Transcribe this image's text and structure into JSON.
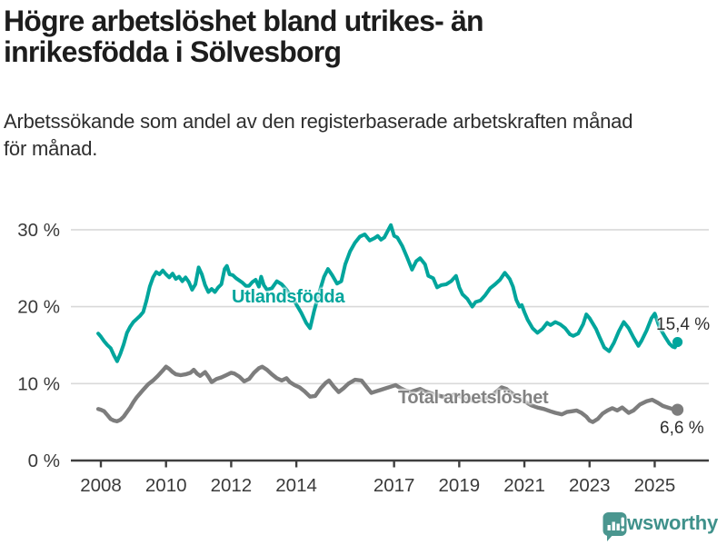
{
  "header": {
    "title_line1": "Högre arbetslöshet bland utrikes- än",
    "title_line2": "inrikesfödda i Sölvesborg",
    "subtitle_line1": "Arbetssökande som andel av den registerbaserade arbetskraften månad",
    "subtitle_line2": "för månad."
  },
  "colors": {
    "teal": "#00a59c",
    "gray": "#7d7d7d",
    "gray_label": "#828282",
    "grid": "#d9d9d9",
    "axis": "#3f3f3f",
    "tick_text": "#3a3a3a",
    "logo_teal": "#46948e"
  },
  "logo": {
    "text": "Newsworthy"
  },
  "chart_data": {
    "type": "line",
    "title": "Högre arbetslöshet bland utrikes- än inrikesfödda i Sölvesborg",
    "subtitle": "Arbetssökande som andel av den registerbaserade arbetskraften månad för månad.",
    "xlabel": "",
    "ylabel": "",
    "x_range_years": [
      2007.9,
      2026.2
    ],
    "ylim": [
      0,
      32
    ],
    "grid": "horizontal",
    "y_axis": {
      "ticks": [
        {
          "value": 0,
          "label": "0 %"
        },
        {
          "value": 10,
          "label": "10 %"
        },
        {
          "value": 20,
          "label": "20 %"
        },
        {
          "value": 30,
          "label": "30 %"
        }
      ]
    },
    "x_axis": {
      "ticks": [
        {
          "value": 2008,
          "label": "2008"
        },
        {
          "value": 2010,
          "label": "2010"
        },
        {
          "value": 2012,
          "label": "2012"
        },
        {
          "value": 2014,
          "label": "2014"
        },
        {
          "value": 2017,
          "label": "2017"
        },
        {
          "value": 2019,
          "label": "2019"
        },
        {
          "value": 2021,
          "label": "2021"
        },
        {
          "value": 2023,
          "label": "2023"
        },
        {
          "value": 2025,
          "label": "2025"
        }
      ]
    },
    "series": [
      {
        "name": "Utlandsfödda",
        "color": "#00a59c",
        "end_label": "15,4 %",
        "end_value": 15.4,
        "points": [
          [
            2007.92,
            16.5
          ],
          [
            2008.0,
            16.1
          ],
          [
            2008.1,
            15.5
          ],
          [
            2008.2,
            15.0
          ],
          [
            2008.3,
            14.6
          ],
          [
            2008.4,
            13.7
          ],
          [
            2008.5,
            12.9
          ],
          [
            2008.6,
            13.9
          ],
          [
            2008.7,
            15.1
          ],
          [
            2008.8,
            16.6
          ],
          [
            2008.9,
            17.4
          ],
          [
            2009.0,
            18.0
          ],
          [
            2009.1,
            18.4
          ],
          [
            2009.2,
            18.8
          ],
          [
            2009.3,
            19.3
          ],
          [
            2009.4,
            20.8
          ],
          [
            2009.5,
            22.6
          ],
          [
            2009.6,
            23.8
          ],
          [
            2009.7,
            24.5
          ],
          [
            2009.8,
            24.2
          ],
          [
            2009.9,
            24.7
          ],
          [
            2010.0,
            24.2
          ],
          [
            2010.1,
            23.8
          ],
          [
            2010.2,
            24.3
          ],
          [
            2010.3,
            23.6
          ],
          [
            2010.4,
            23.9
          ],
          [
            2010.5,
            23.3
          ],
          [
            2010.6,
            23.8
          ],
          [
            2010.7,
            23.2
          ],
          [
            2010.8,
            22.2
          ],
          [
            2010.9,
            22.9
          ],
          [
            2011.0,
            25.1
          ],
          [
            2011.1,
            24.2
          ],
          [
            2011.2,
            22.8
          ],
          [
            2011.3,
            21.9
          ],
          [
            2011.4,
            22.3
          ],
          [
            2011.5,
            21.9
          ],
          [
            2011.6,
            22.5
          ],
          [
            2011.7,
            22.9
          ],
          [
            2011.8,
            24.9
          ],
          [
            2011.87,
            25.3
          ],
          [
            2011.95,
            24.2
          ],
          [
            2012.05,
            24.1
          ],
          [
            2012.15,
            23.7
          ],
          [
            2012.25,
            23.4
          ],
          [
            2012.35,
            23.1
          ],
          [
            2012.45,
            22.7
          ],
          [
            2012.55,
            22.7
          ],
          [
            2012.65,
            23.2
          ],
          [
            2012.75,
            23.5
          ],
          [
            2012.85,
            22.6
          ],
          [
            2012.92,
            23.9
          ],
          [
            2013.0,
            22.8
          ],
          [
            2013.1,
            22.2
          ],
          [
            2013.25,
            22.4
          ],
          [
            2013.4,
            23.3
          ],
          [
            2013.55,
            22.9
          ],
          [
            2013.7,
            22.2
          ],
          [
            2013.85,
            21.3
          ],
          [
            2014.0,
            20.3
          ],
          [
            2014.15,
            19.2
          ],
          [
            2014.3,
            17.9
          ],
          [
            2014.42,
            17.2
          ],
          [
            2014.55,
            19.5
          ],
          [
            2014.7,
            21.8
          ],
          [
            2014.85,
            23.9
          ],
          [
            2014.97,
            24.9
          ],
          [
            2015.1,
            24.1
          ],
          [
            2015.25,
            23.0
          ],
          [
            2015.38,
            23.3
          ],
          [
            2015.5,
            25.5
          ],
          [
            2015.65,
            27.2
          ],
          [
            2015.8,
            28.3
          ],
          [
            2015.95,
            29.1
          ],
          [
            2016.1,
            29.4
          ],
          [
            2016.25,
            28.6
          ],
          [
            2016.4,
            28.9
          ],
          [
            2016.5,
            29.2
          ],
          [
            2016.6,
            28.7
          ],
          [
            2016.7,
            29.0
          ],
          [
            2016.8,
            29.8
          ],
          [
            2016.9,
            30.6
          ],
          [
            2017.0,
            29.2
          ],
          [
            2017.1,
            29.0
          ],
          [
            2017.25,
            27.9
          ],
          [
            2017.4,
            26.4
          ],
          [
            2017.55,
            24.8
          ],
          [
            2017.68,
            25.9
          ],
          [
            2017.8,
            26.3
          ],
          [
            2017.95,
            25.5
          ],
          [
            2018.05,
            24.0
          ],
          [
            2018.2,
            23.7
          ],
          [
            2018.32,
            22.5
          ],
          [
            2018.45,
            22.8
          ],
          [
            2018.6,
            22.9
          ],
          [
            2018.75,
            23.3
          ],
          [
            2018.9,
            24.0
          ],
          [
            2019.0,
            22.5
          ],
          [
            2019.1,
            21.6
          ],
          [
            2019.25,
            21.0
          ],
          [
            2019.4,
            20.0
          ],
          [
            2019.5,
            20.6
          ],
          [
            2019.65,
            20.8
          ],
          [
            2019.8,
            21.5
          ],
          [
            2019.95,
            22.4
          ],
          [
            2020.1,
            22.9
          ],
          [
            2020.25,
            23.5
          ],
          [
            2020.4,
            24.4
          ],
          [
            2020.55,
            23.6
          ],
          [
            2020.65,
            22.6
          ],
          [
            2020.75,
            20.9
          ],
          [
            2020.85,
            20.0
          ],
          [
            2020.92,
            20.2
          ],
          [
            2021.0,
            19.3
          ],
          [
            2021.1,
            18.3
          ],
          [
            2021.25,
            17.2
          ],
          [
            2021.4,
            16.6
          ],
          [
            2021.55,
            17.1
          ],
          [
            2021.7,
            17.9
          ],
          [
            2021.8,
            17.6
          ],
          [
            2021.95,
            18.0
          ],
          [
            2022.1,
            17.7
          ],
          [
            2022.25,
            17.2
          ],
          [
            2022.4,
            16.4
          ],
          [
            2022.5,
            16.2
          ],
          [
            2022.65,
            16.5
          ],
          [
            2022.8,
            17.7
          ],
          [
            2022.9,
            19.0
          ],
          [
            2023.0,
            18.5
          ],
          [
            2023.1,
            17.8
          ],
          [
            2023.2,
            17.1
          ],
          [
            2023.3,
            16.1
          ],
          [
            2023.45,
            14.7
          ],
          [
            2023.6,
            14.2
          ],
          [
            2023.75,
            15.3
          ],
          [
            2023.9,
            16.8
          ],
          [
            2024.05,
            18.0
          ],
          [
            2024.2,
            17.2
          ],
          [
            2024.35,
            16.0
          ],
          [
            2024.5,
            14.9
          ],
          [
            2024.6,
            15.6
          ],
          [
            2024.75,
            16.9
          ],
          [
            2024.9,
            18.5
          ],
          [
            2025.0,
            19.1
          ],
          [
            2025.15,
            17.3
          ],
          [
            2025.3,
            16.2
          ],
          [
            2025.45,
            15.2
          ],
          [
            2025.55,
            14.8
          ],
          [
            2025.62,
            14.7
          ],
          [
            2025.7,
            15.4
          ]
        ]
      },
      {
        "name": "Total arbetslöshet",
        "color": "#7d7d7d",
        "end_label": "6,6 %",
        "end_value": 6.6,
        "points": [
          [
            2007.92,
            6.7
          ],
          [
            2008.0,
            6.6
          ],
          [
            2008.1,
            6.4
          ],
          [
            2008.2,
            5.9
          ],
          [
            2008.3,
            5.4
          ],
          [
            2008.4,
            5.2
          ],
          [
            2008.5,
            5.1
          ],
          [
            2008.6,
            5.3
          ],
          [
            2008.7,
            5.7
          ],
          [
            2008.8,
            6.3
          ],
          [
            2008.9,
            6.9
          ],
          [
            2009.0,
            7.6
          ],
          [
            2009.1,
            8.2
          ],
          [
            2009.2,
            8.7
          ],
          [
            2009.3,
            9.2
          ],
          [
            2009.45,
            9.9
          ],
          [
            2009.6,
            10.4
          ],
          [
            2009.75,
            11.0
          ],
          [
            2009.9,
            11.7
          ],
          [
            2010.0,
            12.2
          ],
          [
            2010.1,
            11.9
          ],
          [
            2010.2,
            11.5
          ],
          [
            2010.3,
            11.2
          ],
          [
            2010.45,
            11.1
          ],
          [
            2010.6,
            11.2
          ],
          [
            2010.75,
            11.4
          ],
          [
            2010.85,
            11.8
          ],
          [
            2010.95,
            11.3
          ],
          [
            2011.05,
            11.0
          ],
          [
            2011.2,
            11.5
          ],
          [
            2011.3,
            10.9
          ],
          [
            2011.4,
            10.2
          ],
          [
            2011.55,
            10.6
          ],
          [
            2011.7,
            10.8
          ],
          [
            2011.85,
            11.1
          ],
          [
            2012.0,
            11.4
          ],
          [
            2012.1,
            11.3
          ],
          [
            2012.25,
            10.9
          ],
          [
            2012.4,
            10.3
          ],
          [
            2012.55,
            10.6
          ],
          [
            2012.7,
            11.4
          ],
          [
            2012.85,
            12.0
          ],
          [
            2012.95,
            12.2
          ],
          [
            2013.1,
            11.8
          ],
          [
            2013.25,
            11.2
          ],
          [
            2013.4,
            10.7
          ],
          [
            2013.55,
            10.4
          ],
          [
            2013.7,
            10.7
          ],
          [
            2013.8,
            10.2
          ],
          [
            2013.95,
            9.8
          ],
          [
            2014.1,
            9.5
          ],
          [
            2014.25,
            9.0
          ],
          [
            2014.42,
            8.3
          ],
          [
            2014.58,
            8.4
          ],
          [
            2014.75,
            9.4
          ],
          [
            2014.9,
            10.1
          ],
          [
            2015.0,
            10.4
          ],
          [
            2015.15,
            9.6
          ],
          [
            2015.3,
            8.9
          ],
          [
            2015.45,
            9.4
          ],
          [
            2015.6,
            10.0
          ],
          [
            2015.8,
            10.5
          ],
          [
            2016.0,
            10.4
          ],
          [
            2016.15,
            9.6
          ],
          [
            2016.3,
            8.8
          ],
          [
            2016.45,
            9.0
          ],
          [
            2016.6,
            9.2
          ],
          [
            2016.75,
            9.4
          ],
          [
            2016.9,
            9.6
          ],
          [
            2017.05,
            9.8
          ],
          [
            2017.2,
            9.4
          ],
          [
            2017.35,
            9.1
          ],
          [
            2017.5,
            8.9
          ],
          [
            2017.65,
            9.1
          ],
          [
            2017.8,
            9.3
          ],
          [
            2017.95,
            9.0
          ],
          [
            2018.1,
            8.8
          ],
          [
            2018.3,
            8.5
          ],
          [
            2018.5,
            8.3
          ],
          [
            2018.7,
            8.4
          ],
          [
            2018.9,
            8.6
          ],
          [
            2019.1,
            8.2
          ],
          [
            2019.3,
            7.9
          ],
          [
            2019.5,
            7.7
          ],
          [
            2019.7,
            7.9
          ],
          [
            2019.9,
            8.2
          ],
          [
            2020.1,
            8.8
          ],
          [
            2020.3,
            9.5
          ],
          [
            2020.45,
            9.3
          ],
          [
            2020.6,
            8.8
          ],
          [
            2020.8,
            8.2
          ],
          [
            2021.0,
            7.7
          ],
          [
            2021.2,
            7.2
          ],
          [
            2021.4,
            6.9
          ],
          [
            2021.6,
            6.7
          ],
          [
            2021.8,
            6.4
          ],
          [
            2021.95,
            6.2
          ],
          [
            2022.15,
            6.0
          ],
          [
            2022.3,
            6.3
          ],
          [
            2022.45,
            6.4
          ],
          [
            2022.6,
            6.5
          ],
          [
            2022.75,
            6.2
          ],
          [
            2022.9,
            5.7
          ],
          [
            2023.0,
            5.2
          ],
          [
            2023.1,
            5.0
          ],
          [
            2023.25,
            5.4
          ],
          [
            2023.4,
            6.1
          ],
          [
            2023.55,
            6.5
          ],
          [
            2023.7,
            6.8
          ],
          [
            2023.85,
            6.5
          ],
          [
            2024.0,
            6.9
          ],
          [
            2024.2,
            6.2
          ],
          [
            2024.35,
            6.5
          ],
          [
            2024.55,
            7.3
          ],
          [
            2024.75,
            7.7
          ],
          [
            2024.92,
            7.9
          ],
          [
            2025.1,
            7.5
          ],
          [
            2025.25,
            7.1
          ],
          [
            2025.4,
            6.9
          ],
          [
            2025.55,
            6.7
          ],
          [
            2025.7,
            6.6
          ]
        ]
      }
    ],
    "legend_position": "inline-labels"
  }
}
